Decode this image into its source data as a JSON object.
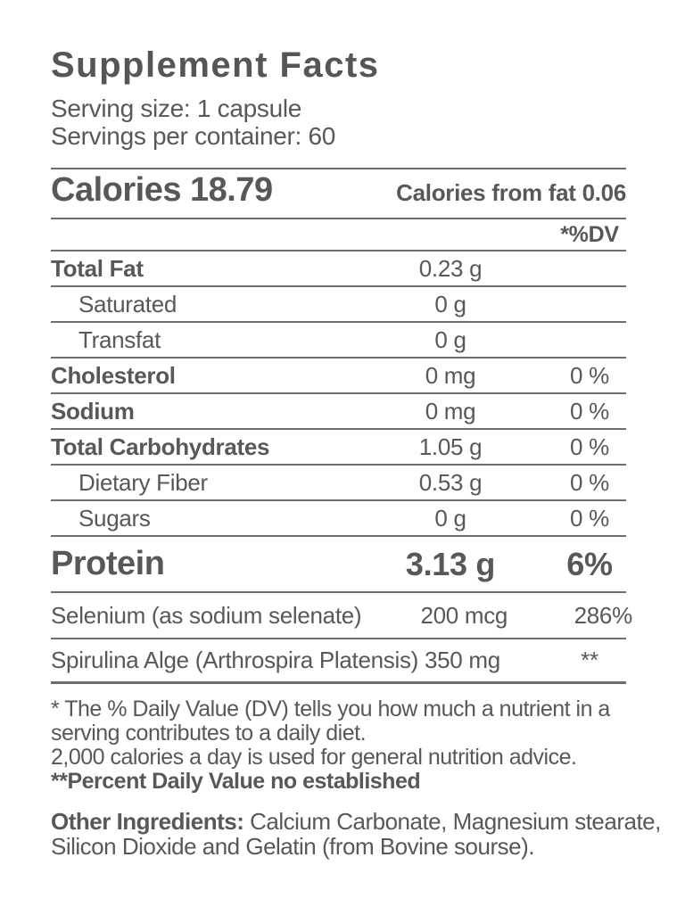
{
  "supplement_facts": {
    "title": "Supplement Facts",
    "serving_size": "Serving size: 1 capsule",
    "servings_per_container": "Servings per container: 60",
    "calories": {
      "label": "Calories",
      "value": "18.79"
    },
    "calories_from_fat": {
      "label": "Calories from fat",
      "value": "0.06"
    },
    "dv_header": "*%DV",
    "rows": [
      {
        "name": "Total Fat",
        "amount": "0.23 g",
        "dv": ""
      },
      {
        "name": "Saturated",
        "amount": "0 g",
        "dv": ""
      },
      {
        "name": "Transfat",
        "amount": "0 g",
        "dv": ""
      },
      {
        "name": "Cholesterol",
        "amount": "0 mg",
        "dv": "0 %"
      },
      {
        "name": "Sodium",
        "amount": "0 mg",
        "dv": "0 %"
      },
      {
        "name": "Total Carbohydrates",
        "amount": "1.05 g",
        "dv": "0 %"
      },
      {
        "name": "Dietary Fiber",
        "amount": "0.53 g",
        "dv": "0 %"
      },
      {
        "name": "Sugars",
        "amount": "0 g",
        "dv": "0 %"
      },
      {
        "name": "Protein",
        "amount": "3.13 g",
        "dv": "6%"
      },
      {
        "name": "Selenium (as sodium selenate)",
        "amount": "200 mcg",
        "dv": "286%"
      },
      {
        "name": "Spirulina Alge (Arthrospira Platensis) 350 mg",
        "amount": "",
        "dv": "**"
      }
    ],
    "footnotes": [
      "* The % Daily Value (DV) tells you how much a nutrient in a",
      "serving contributes to a daily diet.",
      "2,000 calories a day is used for general nutrition advice.",
      "**Percent Daily Value no established"
    ],
    "other_ingredients": {
      "label": "Other Ingredients:",
      "line1_rest": " Calcium Carbonate, Magnesium stearate,",
      "line2": "Silicon Dioxide and Gelatin (from Bovine sourse)."
    },
    "colors": {
      "text": "#58585a",
      "line": "#6e6e70"
    }
  }
}
